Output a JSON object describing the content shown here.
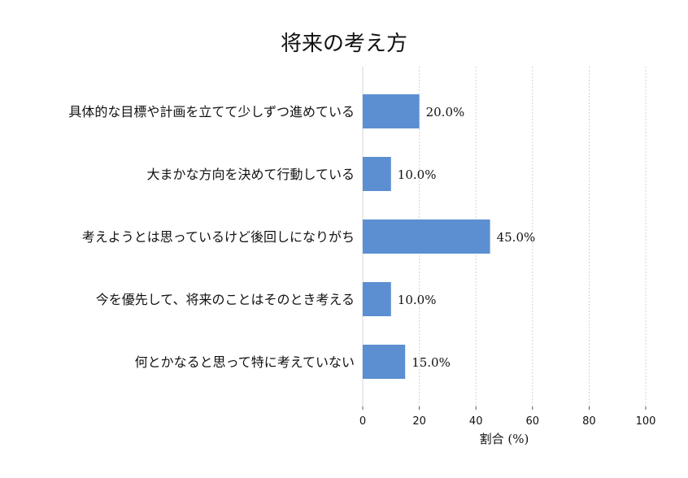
{
  "chart_data": {
    "type": "bar",
    "orientation": "horizontal",
    "title": "将来の考え方",
    "xlabel": "割合 (%)",
    "ylabel": "",
    "xlim": [
      0,
      100
    ],
    "xticks": [
      0,
      20,
      40,
      60,
      80,
      100
    ],
    "x_grid": true,
    "bar_color": "#5b8fd1",
    "categories": [
      "具体的な目標や計画を立てて少しずつ進めている",
      "大まかな方向を決めて行動している",
      "考えようとは思っているけど後回しになりがち",
      "今を優先して、将来のことはそのとき考える",
      "何とかなると思って特に考えていない"
    ],
    "values": [
      20.0,
      10.0,
      45.0,
      10.0,
      15.0
    ],
    "value_labels": [
      "20.0%",
      "10.0%",
      "45.0%",
      "10.0%",
      "15.0%"
    ]
  }
}
